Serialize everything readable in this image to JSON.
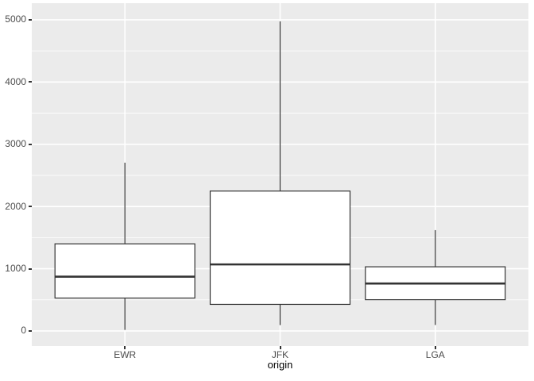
{
  "chart_data": {
    "type": "boxplot",
    "title": "",
    "xlabel": "origin",
    "ylabel": "",
    "categories": [
      "EWR",
      "JFK",
      "LGA"
    ],
    "boxes": [
      {
        "category": "EWR",
        "whisker_low": 17,
        "q1": 529,
        "median": 872,
        "q3": 1400,
        "whisker_high": 2704
      },
      {
        "category": "JFK",
        "whisker_low": 94,
        "q1": 427,
        "median": 1069,
        "q3": 2248,
        "whisker_high": 4975
      },
      {
        "category": "LGA",
        "whisker_low": 96,
        "q1": 502,
        "median": 762,
        "q3": 1031,
        "whisker_high": 1620
      }
    ],
    "ylim": [
      -243,
      5267
    ],
    "yticks": [
      0,
      1000,
      2000,
      3000,
      4000,
      5000
    ],
    "yticks_minor": [
      500,
      1500,
      2500,
      3500,
      4500
    ],
    "grid": "major+minor",
    "legend": "none",
    "outliers": "none",
    "theme": {
      "panel_bg": "#EBEBEB",
      "grid_color": "#FFFFFF",
      "box_fill": "#FFFFFF",
      "box_stroke": "#333333",
      "tick_color": "#333333",
      "tick_label_color": "#4D4D4D",
      "axis_title_color": "#000000",
      "background": "#FFFFFF"
    }
  }
}
